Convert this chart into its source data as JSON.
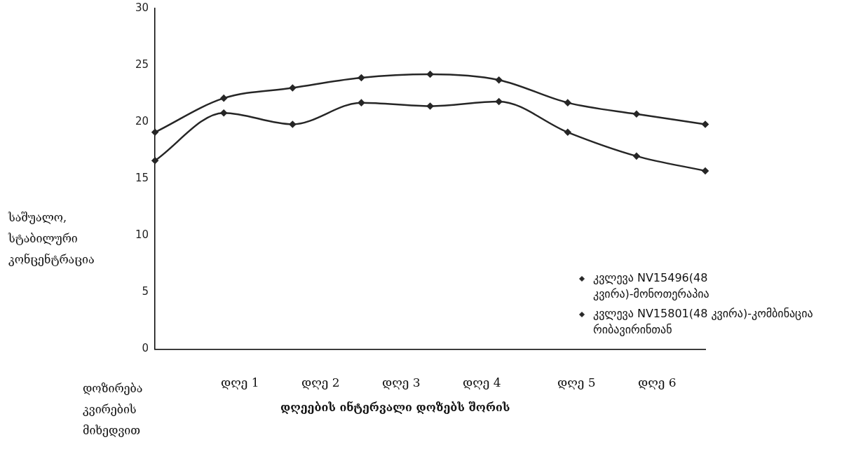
{
  "chart_data": {
    "type": "line",
    "ylabel": "საშუალო, სტაბილური კონცენტრაცია",
    "xlabel": "დღეების ინტერვალი დოზებს შორის",
    "categories": [
      null,
      null,
      null,
      null,
      null,
      null,
      null,
      null,
      null
    ],
    "annotations": [
      "დოზირება კვირების მიხედვით",
      "დღე 1",
      "დღე 2",
      "დღე 3",
      "დღე 4",
      "დღე 5",
      "დღე 6"
    ],
    "series": [
      {
        "name": "კვლევა NV15496(48 კვირა)-მონოთერაპია",
        "color": "#262626",
        "values": [
          19.1,
          22.1,
          23.0,
          23.9,
          24.2,
          23.7,
          21.7,
          20.7,
          19.8
        ]
      },
      {
        "name": "კვლევა NV15801(48 კვირა)-კომბინაცია რიბავირინთან",
        "color": "#262626",
        "values": [
          16.6,
          20.8,
          19.8,
          21.7,
          21.4,
          21.8,
          19.1,
          17.0,
          15.7
        ]
      }
    ],
    "ylim": [
      0,
      30
    ],
    "yticks": [
      0,
      5,
      10,
      15,
      20,
      25,
      30
    ],
    "grid": false,
    "legend": "right",
    "marker": "diamond",
    "line_style": "solid"
  }
}
